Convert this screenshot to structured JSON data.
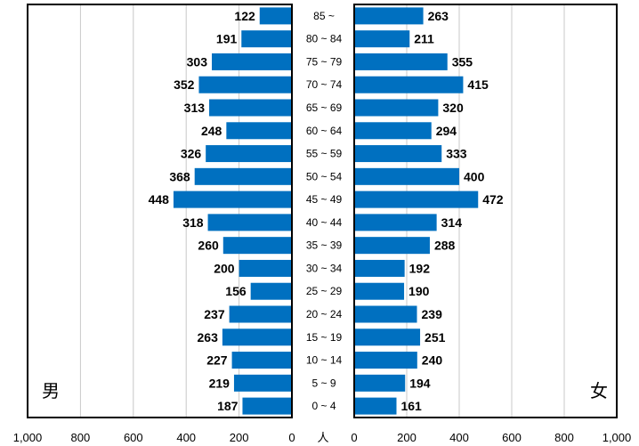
{
  "chart_data": {
    "type": "bar",
    "subtype": "population-pyramid",
    "categories": [
      "85 ~",
      "80 ~ 84",
      "75 ~ 79",
      "70 ~ 74",
      "65 ~ 69",
      "60 ~ 64",
      "55 ~ 59",
      "50 ~ 54",
      "45 ~ 49",
      "40 ~ 44",
      "35 ~ 39",
      "30 ~ 34",
      "25 ~ 29",
      "20 ~ 24",
      "15 ~ 19",
      "10 ~ 14",
      "5 ~ 9",
      "0 ~ 4"
    ],
    "series": [
      {
        "name": "男",
        "values": [
          122,
          191,
          303,
          352,
          313,
          248,
          326,
          368,
          448,
          318,
          260,
          200,
          156,
          237,
          263,
          227,
          219,
          187
        ]
      },
      {
        "name": "女",
        "values": [
          263,
          211,
          355,
          415,
          320,
          294,
          333,
          400,
          472,
          314,
          288,
          192,
          190,
          239,
          251,
          240,
          194,
          161
        ]
      }
    ],
    "x_ticks_left": [
      "1,000",
      "800",
      "600",
      "400",
      "200",
      "0"
    ],
    "x_ticks_right": [
      "0",
      "200",
      "400",
      "600",
      "800",
      "1,000"
    ],
    "xlabel": "人",
    "xlim": [
      0,
      1000
    ],
    "grid": true,
    "bar_color": "#0070C0"
  }
}
